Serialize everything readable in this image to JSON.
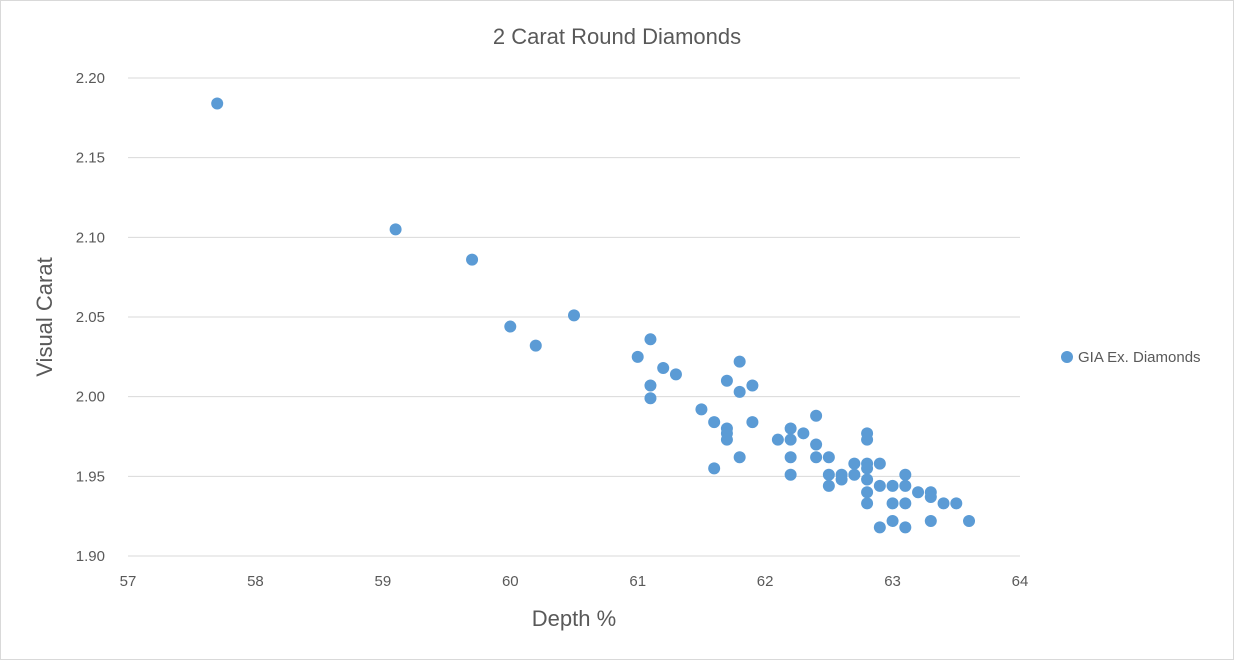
{
  "chart_data": {
    "type": "scatter",
    "title": "2 Carat Round Diamonds",
    "xlabel": "Depth %",
    "ylabel": "Visual Carat",
    "xlim": [
      57,
      64
    ],
    "ylim": [
      1.9,
      2.2
    ],
    "xticks": [
      "57",
      "58",
      "59",
      "60",
      "61",
      "62",
      "63",
      "64"
    ],
    "yticks": [
      "1.90",
      "1.95",
      "2.00",
      "2.05",
      "2.10",
      "2.15",
      "2.20"
    ],
    "grid": "horizontal",
    "legend_position": "right",
    "series": [
      {
        "name": "GIA Ex. Diamonds",
        "color": "#5b9bd5",
        "points": [
          [
            57.7,
            2.184
          ],
          [
            59.1,
            2.105
          ],
          [
            59.7,
            2.086
          ],
          [
            60.0,
            2.044
          ],
          [
            60.2,
            2.032
          ],
          [
            60.5,
            2.051
          ],
          [
            61.0,
            2.025
          ],
          [
            61.1,
            2.036
          ],
          [
            61.2,
            2.018
          ],
          [
            61.3,
            2.014
          ],
          [
            61.1,
            2.007
          ],
          [
            61.1,
            1.999
          ],
          [
            61.5,
            1.992
          ],
          [
            61.6,
            1.984
          ],
          [
            61.7,
            1.98
          ],
          [
            61.7,
            1.977
          ],
          [
            61.7,
            1.973
          ],
          [
            61.6,
            1.955
          ],
          [
            61.7,
            2.01
          ],
          [
            61.8,
            2.022
          ],
          [
            61.8,
            2.003
          ],
          [
            61.9,
            2.007
          ],
          [
            61.9,
            1.984
          ],
          [
            61.8,
            1.962
          ],
          [
            62.1,
            1.973
          ],
          [
            62.2,
            1.98
          ],
          [
            62.2,
            1.973
          ],
          [
            62.3,
            1.977
          ],
          [
            62.2,
            1.962
          ],
          [
            62.2,
            1.951
          ],
          [
            62.4,
            1.988
          ],
          [
            62.4,
            1.97
          ],
          [
            62.4,
            1.962
          ],
          [
            62.5,
            1.962
          ],
          [
            62.5,
            1.951
          ],
          [
            62.5,
            1.944
          ],
          [
            62.6,
            1.951
          ],
          [
            62.6,
            1.948
          ],
          [
            62.7,
            1.958
          ],
          [
            62.7,
            1.951
          ],
          [
            62.8,
            1.977
          ],
          [
            62.8,
            1.973
          ],
          [
            62.8,
            1.958
          ],
          [
            62.8,
            1.955
          ],
          [
            62.8,
            1.948
          ],
          [
            62.8,
            1.94
          ],
          [
            62.8,
            1.933
          ],
          [
            62.9,
            1.958
          ],
          [
            62.9,
            1.944
          ],
          [
            62.9,
            1.918
          ],
          [
            63.0,
            1.944
          ],
          [
            63.0,
            1.933
          ],
          [
            63.0,
            1.922
          ],
          [
            63.1,
            1.951
          ],
          [
            63.1,
            1.944
          ],
          [
            63.1,
            1.933
          ],
          [
            63.1,
            1.918
          ],
          [
            63.2,
            1.94
          ],
          [
            63.3,
            1.94
          ],
          [
            63.3,
            1.937
          ],
          [
            63.3,
            1.922
          ],
          [
            63.4,
            1.933
          ],
          [
            63.5,
            1.933
          ],
          [
            63.6,
            1.922
          ]
        ]
      }
    ]
  }
}
